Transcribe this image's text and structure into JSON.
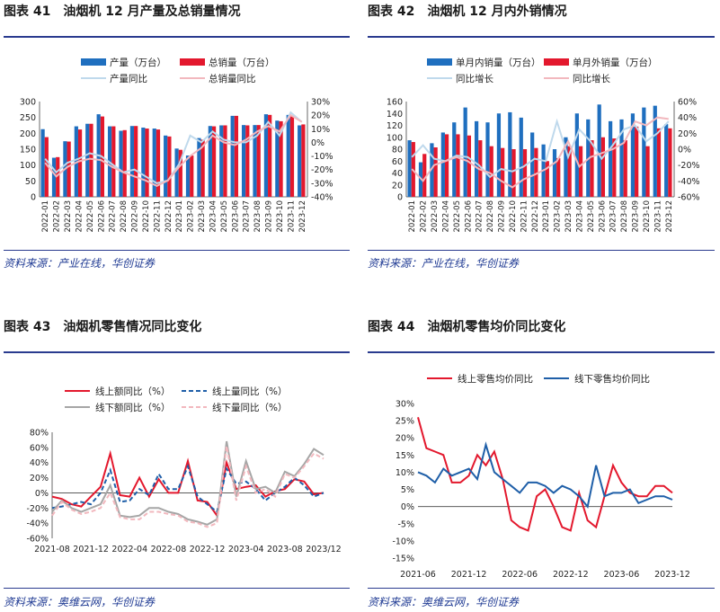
{
  "panels": [
    {
      "label": "图表 41",
      "title": "油烟机 12 月产量及总销量情况",
      "source": "资料来源：产业在线，华创证券"
    },
    {
      "label": "图表 42",
      "title": "油烟机 12 月内外销情况",
      "source": "资料来源：产业在线，华创证券"
    },
    {
      "label": "图表 43",
      "title": "油烟机零售情况同比变化",
      "source": "资料来源：奥维云网，华创证券"
    },
    {
      "label": "图表 44",
      "title": "油烟机零售均价同比变化",
      "source": "资料来源：奥维云网，华创证券"
    }
  ],
  "colors": {
    "blue": "#1F6FBF",
    "red": "#E3182D",
    "lightblue": "#BFD9EC",
    "pink": "#F2B8BE",
    "darkblue": "#1F5FA8",
    "gray": "#A6A6A6",
    "rule": "#2a3b8f"
  },
  "chart_data": [
    {
      "type": "bar",
      "title": "油烟机 12 月产量及总销量情况",
      "categories": [
        "2022-01",
        "2022-02",
        "2022-03",
        "2022-04",
        "2022-05",
        "2022-06",
        "2022-07",
        "2022-08",
        "2022-09",
        "2022-10",
        "2022-11",
        "2022-12",
        "2023-01",
        "2023-02",
        "2023-03",
        "2023-04",
        "2023-05",
        "2023-06",
        "2023-07",
        "2023-08",
        "2023-09",
        "2023-10",
        "2023-11",
        "2023-12"
      ],
      "ylim": [
        0,
        300
      ],
      "yticks": [
        0,
        50,
        100,
        150,
        200,
        250,
        300
      ],
      "y2lim": [
        -40,
        30
      ],
      "y2ticks": [
        "-40%",
        "-30%",
        "-20%",
        "-10%",
        "0%",
        "10%",
        "20%",
        "30%"
      ],
      "series": [
        {
          "name": "产量（万台）",
          "axis": "left",
          "kind": "bar",
          "color": "blue",
          "values": [
            213,
            123,
            175,
            222,
            230,
            260,
            222,
            208,
            223,
            218,
            215,
            193,
            152,
            130,
            185,
            223,
            225,
            255,
            226,
            226,
            260,
            240,
            258,
            225
          ]
        },
        {
          "name": "总销量（万台）",
          "axis": "left",
          "kind": "bar",
          "color": "red",
          "values": [
            188,
            125,
            174,
            212,
            230,
            253,
            222,
            210,
            223,
            215,
            212,
            190,
            148,
            130,
            180,
            222,
            225,
            255,
            225,
            226,
            258,
            238,
            255,
            228
          ]
        },
        {
          "name": "产量同比",
          "axis": "right",
          "kind": "line",
          "color": "lightblue",
          "values": [
            -12,
            -22,
            -15,
            -12,
            -8,
            -10,
            -16,
            -22,
            -20,
            -25,
            -30,
            -28,
            -16,
            5,
            0,
            8,
            2,
            0,
            0,
            5,
            15,
            5,
            22,
            15
          ]
        },
        {
          "name": "总销量同比",
          "axis": "right",
          "kind": "line",
          "color": "pink",
          "values": [
            -15,
            -25,
            -18,
            -14,
            -12,
            -13,
            -18,
            -22,
            -25,
            -28,
            -32,
            -28,
            -18,
            -10,
            -4,
            5,
            0,
            -2,
            2,
            8,
            12,
            8,
            20,
            15
          ]
        }
      ]
    },
    {
      "type": "bar",
      "title": "油烟机 12 月内外销情况",
      "categories": [
        "2022-01",
        "2022-02",
        "2022-03",
        "2022-04",
        "2022-05",
        "2022-06",
        "2022-07",
        "2022-08",
        "2022-09",
        "2022-10",
        "2022-11",
        "2022-12",
        "2023-01",
        "2023-02",
        "2023-03",
        "2023-04",
        "2023-05",
        "2023-06",
        "2023-07",
        "2023-08",
        "2023-09",
        "2023-10",
        "2023-11",
        "2023-12"
      ],
      "ylim": [
        0,
        160
      ],
      "yticks": [
        0,
        20,
        40,
        60,
        80,
        100,
        120,
        140,
        160
      ],
      "y2lim": [
        -60,
        60
      ],
      "y2ticks": [
        "-60%",
        "-40%",
        "-20%",
        "0%",
        "20%",
        "40%",
        "60%"
      ],
      "series": [
        {
          "name": "单月内销量（万台）",
          "axis": "left",
          "kind": "bar",
          "color": "blue",
          "values": [
            95,
            58,
            90,
            108,
            125,
            150,
            127,
            125,
            140,
            142,
            133,
            108,
            88,
            80,
            100,
            140,
            130,
            155,
            127,
            130,
            140,
            150,
            153,
            122
          ]
        },
        {
          "name": "单月外销量（万台）",
          "axis": "left",
          "kind": "bar",
          "color": "red",
          "values": [
            92,
            72,
            83,
            105,
            105,
            103,
            95,
            85,
            82,
            80,
            80,
            82,
            60,
            65,
            85,
            85,
            95,
            100,
            98,
            95,
            118,
            85,
            115,
            115
          ]
        },
        {
          "name": "同比增长",
          "axis": "right",
          "kind": "line",
          "color": "lightblue",
          "values": [
            -10,
            5,
            -12,
            -15,
            -8,
            -10,
            -20,
            -35,
            -25,
            -28,
            -22,
            -12,
            -15,
            35,
            -10,
            25,
            10,
            -12,
            5,
            25,
            30,
            10,
            20,
            35
          ]
        },
        {
          "name": "同比增长",
          "axis": "right",
          "kind": "line",
          "color": "pink",
          "values": [
            -25,
            -40,
            -20,
            -15,
            -10,
            -15,
            -25,
            -30,
            -40,
            -48,
            -38,
            -32,
            -25,
            -15,
            10,
            -22,
            -10,
            -5,
            0,
            8,
            35,
            30,
            40,
            38
          ]
        }
      ]
    },
    {
      "type": "line",
      "title": "油烟机零售情况同比变化",
      "xticklabels": [
        "2021-08",
        "2021-12",
        "2022-04",
        "2022-08",
        "2022-12",
        "2023-04",
        "2023-08",
        "2023/12"
      ],
      "ylim": [
        -60,
        80
      ],
      "yticks": [
        "-60%",
        "-40%",
        "-20%",
        "0%",
        "20%",
        "40%",
        "60%",
        "80%"
      ],
      "n_points": 29,
      "series": [
        {
          "name": "线上额同比（%）",
          "color": "red",
          "dash": "solid",
          "values": [
            -5,
            -8,
            -15,
            -18,
            -5,
            8,
            52,
            -3,
            -5,
            20,
            -5,
            18,
            0,
            0,
            42,
            -10,
            -12,
            -30,
            40,
            5,
            8,
            10,
            -5,
            2,
            5,
            18,
            15,
            -2,
            0
          ]
        },
        {
          "name": "线上量同比（%）",
          "color": "darkblue",
          "dash": "dashed",
          "values": [
            -20,
            -18,
            -15,
            -12,
            -15,
            0,
            30,
            -12,
            -10,
            5,
            -3,
            25,
            5,
            5,
            35,
            -5,
            -15,
            -25,
            32,
            12,
            15,
            5,
            -10,
            0,
            8,
            20,
            10,
            -5,
            0
          ]
        },
        {
          "name": "线下额同比（%）",
          "color": "gray",
          "dash": "solid",
          "values": [
            -25,
            -10,
            -20,
            -25,
            -20,
            -15,
            10,
            -30,
            -32,
            -30,
            -20,
            -20,
            -25,
            -28,
            -35,
            -38,
            -42,
            -35,
            68,
            -5,
            42,
            5,
            8,
            0,
            28,
            22,
            38,
            58,
            50
          ]
        },
        {
          "name": "线下量同比（%）",
          "color": "pink",
          "dash": "dashed",
          "values": [
            -30,
            -12,
            -22,
            -28,
            -25,
            -20,
            0,
            -32,
            -35,
            -35,
            -25,
            -25,
            -28,
            -30,
            -38,
            -40,
            -45,
            -40,
            62,
            -10,
            35,
            0,
            5,
            -5,
            25,
            20,
            35,
            52,
            45
          ]
        }
      ]
    },
    {
      "type": "line",
      "title": "油烟机零售均价同比变化",
      "xticklabels": [
        "2021-06",
        "2021-12",
        "2022-06",
        "2022-12",
        "2023-06",
        "2023-12"
      ],
      "ylim": [
        -15,
        30
      ],
      "yticks": [
        "-15%",
        "-10%",
        "-5%",
        "0%",
        "5%",
        "10%",
        "15%",
        "20%",
        "25%",
        "30%"
      ],
      "n_points": 31,
      "series": [
        {
          "name": "线上零售均价同比",
          "color": "red",
          "values": [
            26,
            17,
            16,
            15,
            7,
            7,
            9,
            15,
            12,
            16,
            8,
            -4,
            -6,
            -7,
            3,
            5,
            0,
            -6,
            -7,
            4,
            -4,
            -6,
            3,
            12,
            7,
            4,
            3,
            3,
            6,
            6,
            4
          ]
        },
        {
          "name": "线下零售均价同比",
          "color": "darkblue",
          "values": [
            10,
            9,
            7,
            11,
            9,
            10,
            11,
            8,
            18,
            10,
            8,
            6,
            4,
            7,
            7,
            6,
            4,
            6,
            5,
            3,
            0,
            12,
            3,
            4,
            4,
            5,
            1,
            2,
            3,
            3,
            2
          ]
        }
      ]
    }
  ]
}
